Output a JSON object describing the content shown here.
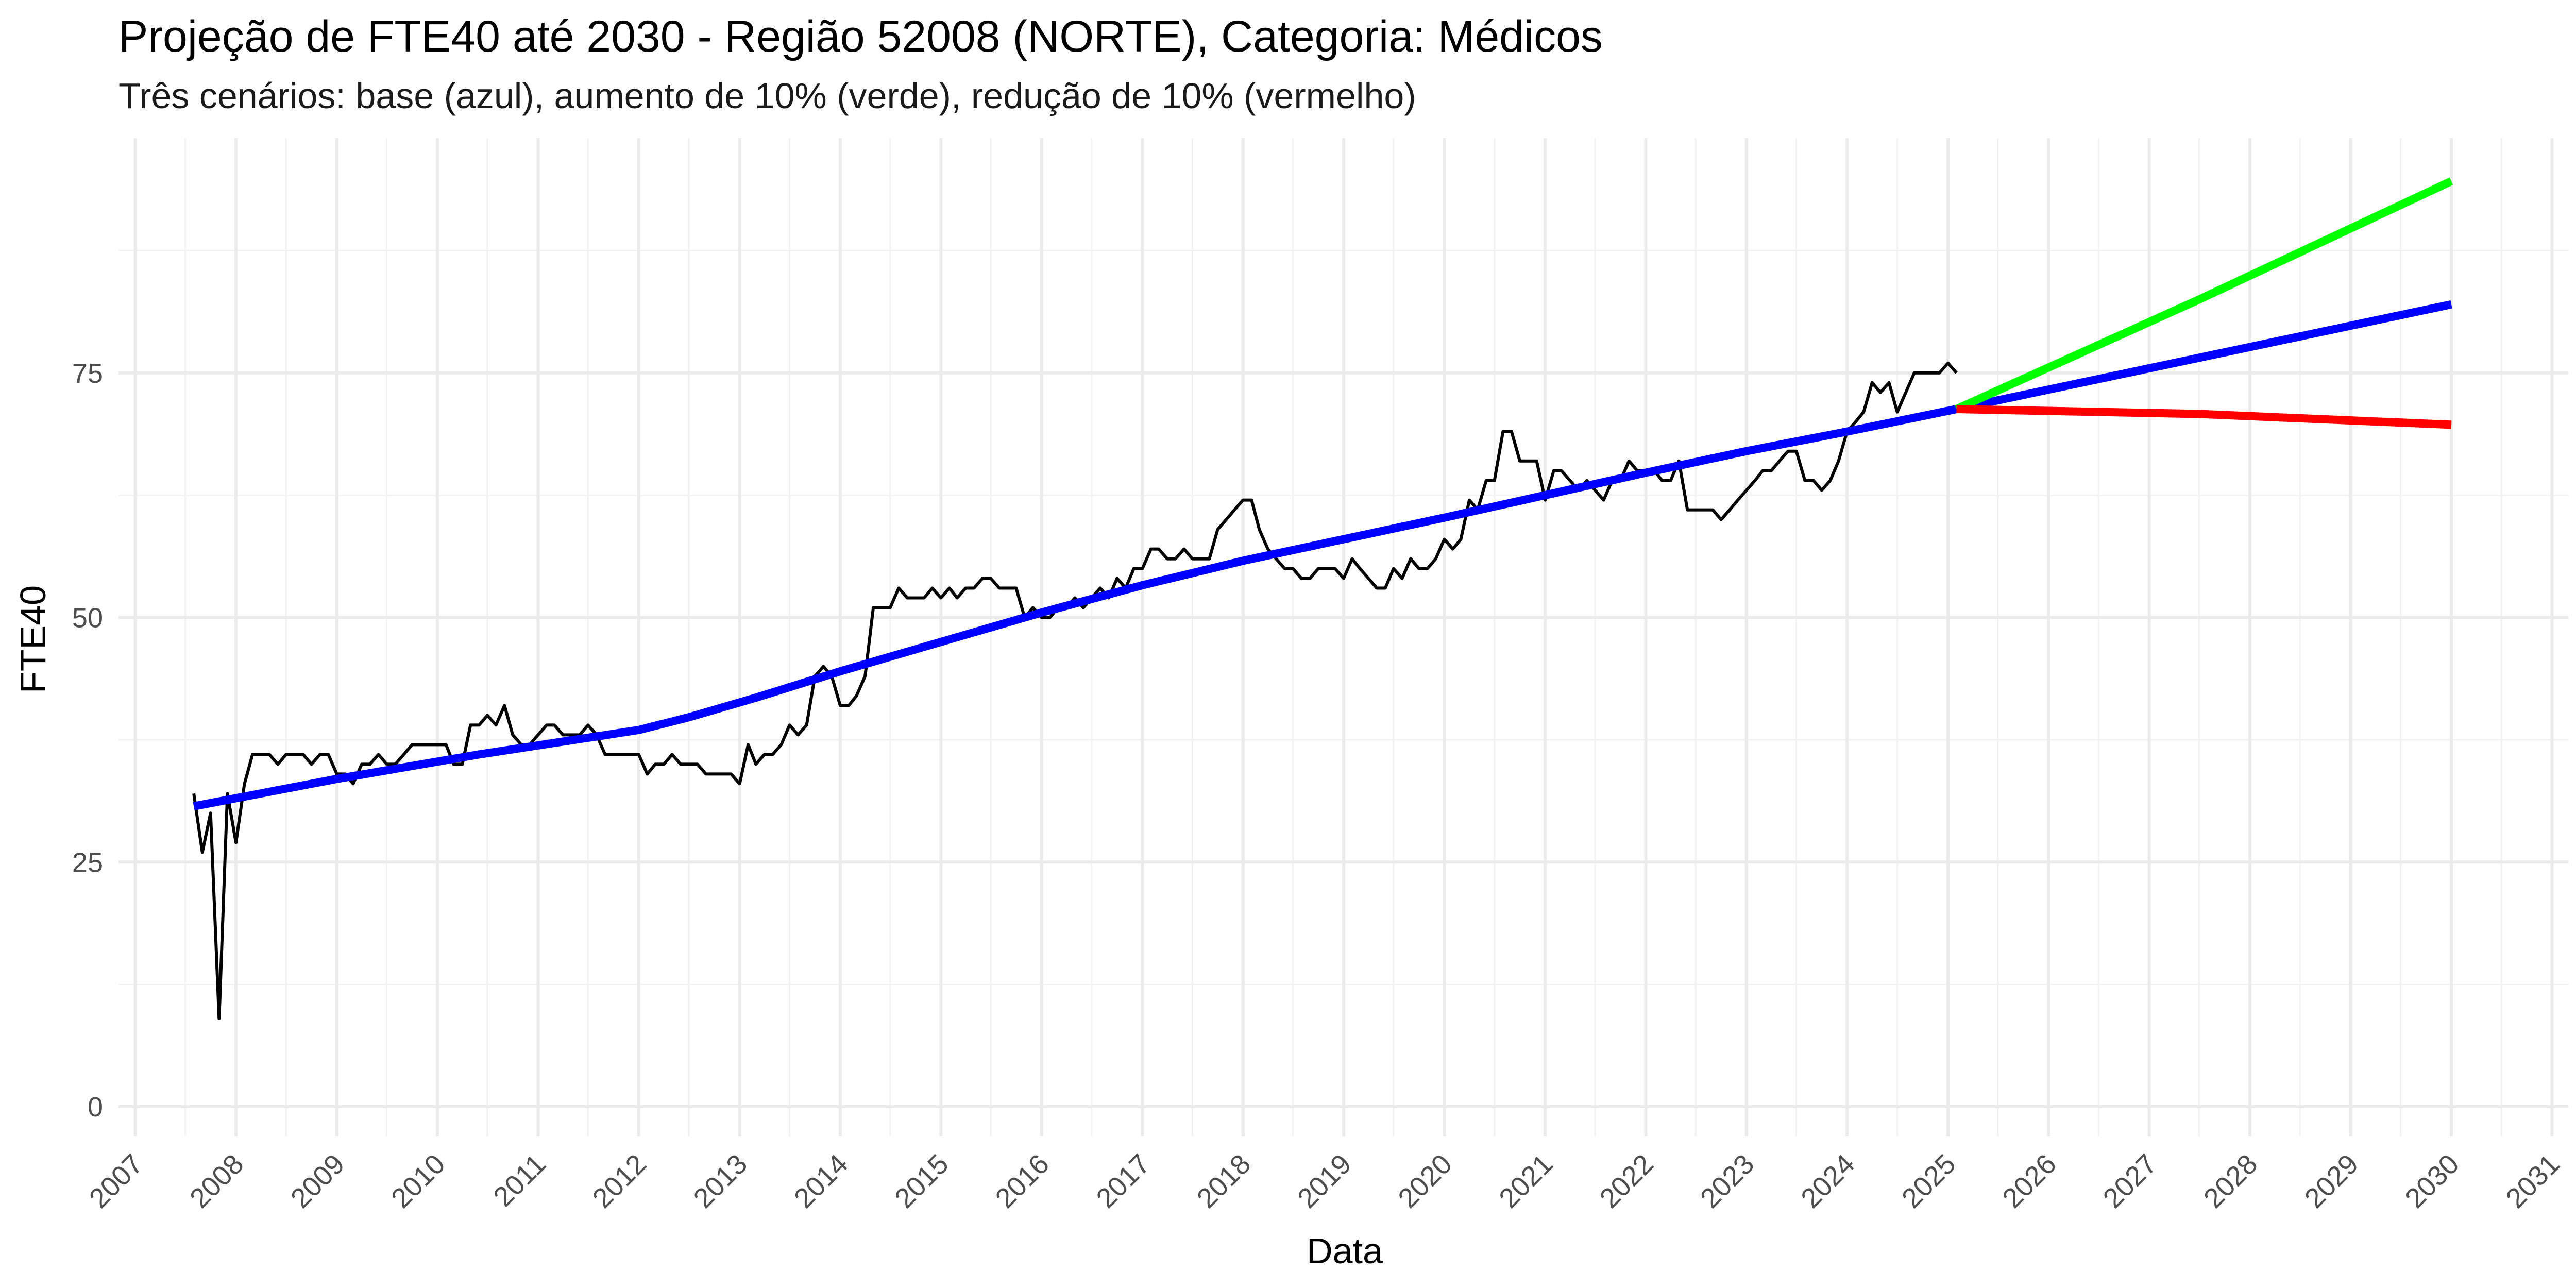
{
  "chart_data": {
    "type": "line",
    "title": "Projeção de FTE40 até 2030 - Região 52008 (NORTE), Categoria: Médicos",
    "subtitle": "Três cenários: base (azul), aumento de 10% (verde), redução de 10% (vermelho)",
    "xlabel": "Data",
    "ylabel": "FTE40",
    "x_type": "date",
    "xlim": [
      "2006-11-01",
      "2031-03-01"
    ],
    "ylim": [
      -3,
      99
    ],
    "x_ticks": [
      "2007",
      "2008",
      "2009",
      "2010",
      "2011",
      "2012",
      "2013",
      "2014",
      "2015",
      "2016",
      "2017",
      "2018",
      "2019",
      "2020",
      "2021",
      "2022",
      "2023",
      "2024",
      "2025",
      "2026",
      "2027",
      "2028",
      "2029",
      "2030",
      "2031"
    ],
    "y_ticks": [
      0,
      25,
      50,
      75
    ],
    "grid": true,
    "legend": "none",
    "series": [
      {
        "color": "#000000",
        "points": [
          [
            "2007-08-01",
            32
          ],
          [
            "2007-09-01",
            26
          ],
          [
            "2007-10-01",
            30
          ],
          [
            "2007-11-01",
            9
          ],
          [
            "2007-12-01",
            32
          ],
          [
            "2008-01-01",
            27
          ],
          [
            "2008-02-01",
            33
          ],
          [
            "2008-03-01",
            36
          ],
          [
            "2008-04-01",
            36
          ],
          [
            "2008-05-01",
            36
          ],
          [
            "2008-06-01",
            35
          ],
          [
            "2008-07-01",
            36
          ],
          [
            "2008-08-01",
            36
          ],
          [
            "2008-09-01",
            36
          ],
          [
            "2008-10-01",
            35
          ],
          [
            "2008-11-01",
            36
          ],
          [
            "2008-12-01",
            36
          ],
          [
            "2009-01-01",
            34
          ],
          [
            "2009-02-01",
            34
          ],
          [
            "2009-03-01",
            33
          ],
          [
            "2009-04-01",
            35
          ],
          [
            "2009-05-01",
            35
          ],
          [
            "2009-06-01",
            36
          ],
          [
            "2009-07-01",
            35
          ],
          [
            "2009-08-01",
            35
          ],
          [
            "2009-09-01",
            36
          ],
          [
            "2009-10-01",
            37
          ],
          [
            "2009-11-01",
            37
          ],
          [
            "2009-12-01",
            37
          ],
          [
            "2010-01-01",
            37
          ],
          [
            "2010-02-01",
            37
          ],
          [
            "2010-03-01",
            35
          ],
          [
            "2010-04-01",
            35
          ],
          [
            "2010-05-01",
            39
          ],
          [
            "2010-06-01",
            39
          ],
          [
            "2010-07-01",
            40
          ],
          [
            "2010-08-01",
            39
          ],
          [
            "2010-09-01",
            41
          ],
          [
            "2010-10-01",
            38
          ],
          [
            "2010-11-01",
            37
          ],
          [
            "2010-12-01",
            37
          ],
          [
            "2011-01-01",
            38
          ],
          [
            "2011-02-01",
            39
          ],
          [
            "2011-03-01",
            39
          ],
          [
            "2011-04-01",
            38
          ],
          [
            "2011-05-01",
            38
          ],
          [
            "2011-06-01",
            38
          ],
          [
            "2011-07-01",
            39
          ],
          [
            "2011-08-01",
            38
          ],
          [
            "2011-09-01",
            36
          ],
          [
            "2011-10-01",
            36
          ],
          [
            "2011-11-01",
            36
          ],
          [
            "2011-12-01",
            36
          ],
          [
            "2012-01-01",
            36
          ],
          [
            "2012-02-01",
            34
          ],
          [
            "2012-03-01",
            35
          ],
          [
            "2012-04-01",
            35
          ],
          [
            "2012-05-01",
            36
          ],
          [
            "2012-06-01",
            35
          ],
          [
            "2012-07-01",
            35
          ],
          [
            "2012-08-01",
            35
          ],
          [
            "2012-09-01",
            34
          ],
          [
            "2012-10-01",
            34
          ],
          [
            "2012-11-01",
            34
          ],
          [
            "2012-12-01",
            34
          ],
          [
            "2013-01-01",
            33
          ],
          [
            "2013-02-01",
            37
          ],
          [
            "2013-03-01",
            35
          ],
          [
            "2013-04-01",
            36
          ],
          [
            "2013-05-01",
            36
          ],
          [
            "2013-06-01",
            37
          ],
          [
            "2013-07-01",
            39
          ],
          [
            "2013-08-01",
            38
          ],
          [
            "2013-09-01",
            39
          ],
          [
            "2013-10-01",
            44
          ],
          [
            "2013-11-01",
            45
          ],
          [
            "2013-12-01",
            44
          ],
          [
            "2014-01-01",
            41
          ],
          [
            "2014-02-01",
            41
          ],
          [
            "2014-03-01",
            42
          ],
          [
            "2014-04-01",
            44
          ],
          [
            "2014-05-01",
            51
          ],
          [
            "2014-06-01",
            51
          ],
          [
            "2014-07-01",
            51
          ],
          [
            "2014-08-01",
            53
          ],
          [
            "2014-09-01",
            52
          ],
          [
            "2014-10-01",
            52
          ],
          [
            "2014-11-01",
            52
          ],
          [
            "2014-12-01",
            53
          ],
          [
            "2015-01-01",
            52
          ],
          [
            "2015-02-01",
            53
          ],
          [
            "2015-03-01",
            52
          ],
          [
            "2015-04-01",
            53
          ],
          [
            "2015-05-01",
            53
          ],
          [
            "2015-06-01",
            54
          ],
          [
            "2015-07-01",
            54
          ],
          [
            "2015-08-01",
            53
          ],
          [
            "2015-09-01",
            53
          ],
          [
            "2015-10-01",
            53
          ],
          [
            "2015-11-01",
            50
          ],
          [
            "2015-12-01",
            51
          ],
          [
            "2016-01-01",
            50
          ],
          [
            "2016-02-01",
            50
          ],
          [
            "2016-03-01",
            51
          ],
          [
            "2016-04-01",
            51
          ],
          [
            "2016-05-01",
            52
          ],
          [
            "2016-06-01",
            51
          ],
          [
            "2016-07-01",
            52
          ],
          [
            "2016-08-01",
            53
          ],
          [
            "2016-09-01",
            52
          ],
          [
            "2016-10-01",
            54
          ],
          [
            "2016-11-01",
            53
          ],
          [
            "2016-12-01",
            55
          ],
          [
            "2017-01-01",
            55
          ],
          [
            "2017-02-01",
            57
          ],
          [
            "2017-03-01",
            57
          ],
          [
            "2017-04-01",
            56
          ],
          [
            "2017-05-01",
            56
          ],
          [
            "2017-06-01",
            57
          ],
          [
            "2017-07-01",
            56
          ],
          [
            "2017-08-01",
            56
          ],
          [
            "2017-09-01",
            56
          ],
          [
            "2017-10-01",
            59
          ],
          [
            "2017-11-01",
            60
          ],
          [
            "2017-12-01",
            61
          ],
          [
            "2018-01-01",
            62
          ],
          [
            "2018-02-01",
            62
          ],
          [
            "2018-03-01",
            59
          ],
          [
            "2018-04-01",
            57
          ],
          [
            "2018-05-01",
            56
          ],
          [
            "2018-06-01",
            55
          ],
          [
            "2018-07-01",
            55
          ],
          [
            "2018-08-01",
            54
          ],
          [
            "2018-09-01",
            54
          ],
          [
            "2018-10-01",
            55
          ],
          [
            "2018-11-01",
            55
          ],
          [
            "2018-12-01",
            55
          ],
          [
            "2019-01-01",
            54
          ],
          [
            "2019-02-01",
            56
          ],
          [
            "2019-03-01",
            55
          ],
          [
            "2019-04-01",
            54
          ],
          [
            "2019-05-01",
            53
          ],
          [
            "2019-06-01",
            53
          ],
          [
            "2019-07-01",
            55
          ],
          [
            "2019-08-01",
            54
          ],
          [
            "2019-09-01",
            56
          ],
          [
            "2019-10-01",
            55
          ],
          [
            "2019-11-01",
            55
          ],
          [
            "2019-12-01",
            56
          ],
          [
            "2020-01-01",
            58
          ],
          [
            "2020-02-01",
            57
          ],
          [
            "2020-03-01",
            58
          ],
          [
            "2020-04-01",
            62
          ],
          [
            "2020-05-01",
            61
          ],
          [
            "2020-06-01",
            64
          ],
          [
            "2020-07-01",
            64
          ],
          [
            "2020-08-01",
            69
          ],
          [
            "2020-09-01",
            69
          ],
          [
            "2020-10-01",
            66
          ],
          [
            "2020-11-01",
            66
          ],
          [
            "2020-12-01",
            66
          ],
          [
            "2021-01-01",
            62
          ],
          [
            "2021-02-01",
            65
          ],
          [
            "2021-03-01",
            65
          ],
          [
            "2021-04-01",
            64
          ],
          [
            "2021-05-01",
            63
          ],
          [
            "2021-06-01",
            64
          ],
          [
            "2021-07-01",
            63
          ],
          [
            "2021-08-01",
            62
          ],
          [
            "2021-09-01",
            64
          ],
          [
            "2021-10-01",
            64
          ],
          [
            "2021-11-01",
            66
          ],
          [
            "2021-12-01",
            65
          ],
          [
            "2022-01-01",
            65
          ],
          [
            "2022-02-01",
            65
          ],
          [
            "2022-03-01",
            64
          ],
          [
            "2022-04-01",
            64
          ],
          [
            "2022-05-01",
            66
          ],
          [
            "2022-06-01",
            61
          ],
          [
            "2022-07-01",
            61
          ],
          [
            "2022-08-01",
            61
          ],
          [
            "2022-09-01",
            61
          ],
          [
            "2022-10-01",
            60
          ],
          [
            "2022-11-01",
            61
          ],
          [
            "2022-12-01",
            62
          ],
          [
            "2023-01-01",
            63
          ],
          [
            "2023-02-01",
            64
          ],
          [
            "2023-03-01",
            65
          ],
          [
            "2023-04-01",
            65
          ],
          [
            "2023-05-01",
            66
          ],
          [
            "2023-06-01",
            67
          ],
          [
            "2023-07-01",
            67
          ],
          [
            "2023-08-01",
            64
          ],
          [
            "2023-09-01",
            64
          ],
          [
            "2023-10-01",
            63
          ],
          [
            "2023-11-01",
            64
          ],
          [
            "2023-12-01",
            66
          ],
          [
            "2024-01-01",
            69
          ],
          [
            "2024-02-01",
            70
          ],
          [
            "2024-03-01",
            71
          ],
          [
            "2024-04-01",
            74
          ],
          [
            "2024-05-01",
            73
          ],
          [
            "2024-06-01",
            74
          ],
          [
            "2024-07-01",
            71
          ],
          [
            "2024-08-01",
            73
          ],
          [
            "2024-09-01",
            75
          ],
          [
            "2024-10-01",
            75
          ],
          [
            "2024-11-01",
            75
          ],
          [
            "2024-12-01",
            75
          ],
          [
            "2025-01-01",
            76
          ],
          [
            "2025-02-01",
            75
          ]
        ]
      },
      {
        "color": "#0000ff",
        "points": [
          [
            "2007-08-01",
            30.7
          ],
          [
            "2009-01-01",
            33.5
          ],
          [
            "2010-06-01",
            36.0
          ],
          [
            "2012-01-01",
            38.5
          ],
          [
            "2012-07-01",
            39.8
          ],
          [
            "2013-03-01",
            41.8
          ],
          [
            "2014-01-01",
            44.5
          ],
          [
            "2015-01-01",
            47.5
          ],
          [
            "2016-01-01",
            50.5
          ],
          [
            "2017-01-01",
            53.3
          ],
          [
            "2018-01-01",
            55.8
          ],
          [
            "2019-01-01",
            58.0
          ],
          [
            "2020-01-01",
            60.2
          ],
          [
            "2021-01-01",
            62.5
          ],
          [
            "2022-01-01",
            64.8
          ],
          [
            "2023-01-01",
            67.0
          ],
          [
            "2024-01-01",
            69.0
          ],
          [
            "2025-02-01",
            71.3
          ],
          [
            "2030-01-01",
            82.0
          ]
        ]
      },
      {
        "color": "#00ff00",
        "points": [
          [
            "2025-02-01",
            71.3
          ],
          [
            "2027-07-01",
            82.5
          ],
          [
            "2030-01-01",
            94.6
          ]
        ]
      },
      {
        "color": "#ff0000",
        "points": [
          [
            "2025-02-01",
            71.3
          ],
          [
            "2027-07-01",
            70.8
          ],
          [
            "2030-01-01",
            69.7
          ]
        ]
      }
    ]
  }
}
